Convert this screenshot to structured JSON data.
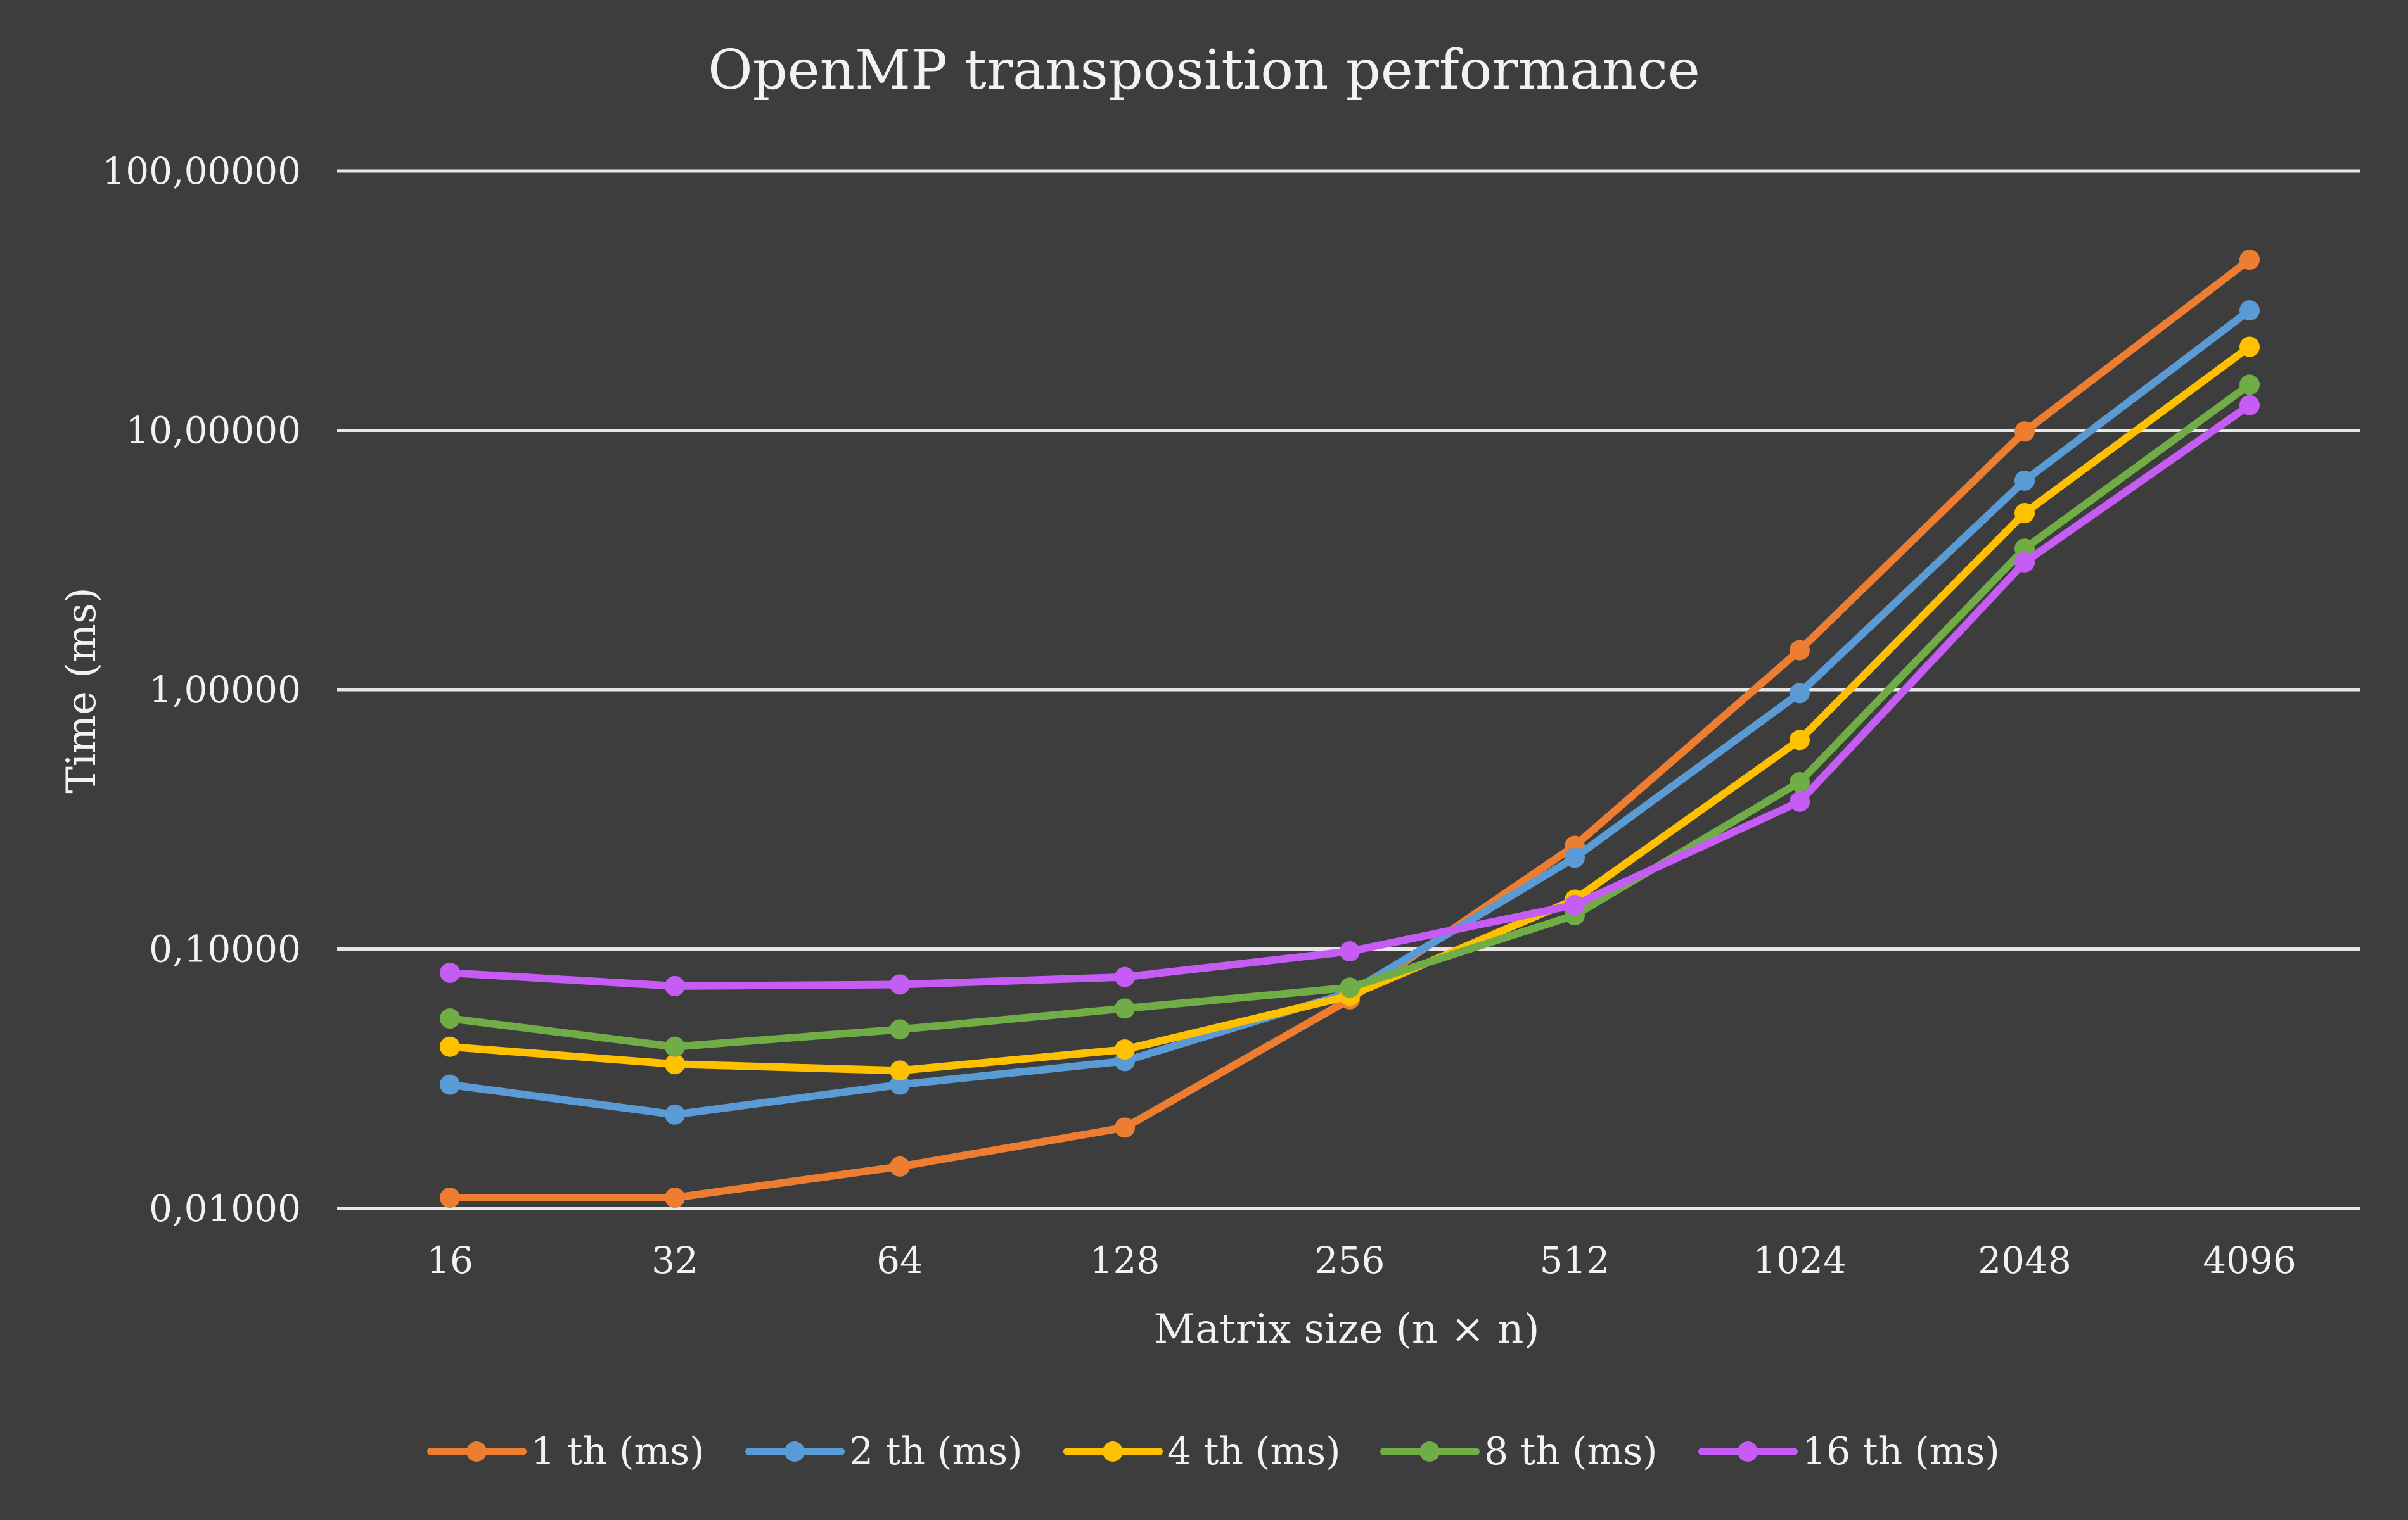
{
  "chart_data": {
    "type": "line",
    "title": "OpenMP transposition performance",
    "xlabel": "Matrix size (n × n)",
    "ylabel": "Time (ms)",
    "y_scale": "log",
    "ylim": [
      0.01,
      100
    ],
    "y_ticks": [
      100,
      10,
      1,
      0.1,
      0.01
    ],
    "y_tick_labels": [
      "100,00000",
      "10,00000",
      "1,00000",
      "0,10000",
      "0,01000"
    ],
    "grid": true,
    "legend_position": "bottom",
    "categories": [
      "16",
      "32",
      "64",
      "128",
      "256",
      "512",
      "1024",
      "2048",
      "4096"
    ],
    "series": [
      {
        "name": "1 th (ms)",
        "color": "#ed7d31",
        "values": [
          0.011,
          0.011,
          0.0145,
          0.0205,
          0.064,
          0.25,
          1.42,
          9.9,
          45.5
        ]
      },
      {
        "name": "2 th (ms)",
        "color": "#5b9bd5",
        "values": [
          0.03,
          0.023,
          0.03,
          0.037,
          0.068,
          0.225,
          0.97,
          6.4,
          29.0
        ]
      },
      {
        "name": "4 th (ms)",
        "color": "#ffc000",
        "values": [
          0.042,
          0.036,
          0.034,
          0.041,
          0.066,
          0.155,
          0.64,
          4.8,
          21.0
        ]
      },
      {
        "name": "8 th (ms)",
        "color": "#70ad47",
        "values": [
          0.054,
          0.042,
          0.049,
          0.059,
          0.071,
          0.135,
          0.44,
          3.5,
          15.0
        ]
      },
      {
        "name": "16 th (ms)",
        "color": "#c55cf3",
        "values": [
          0.081,
          0.072,
          0.073,
          0.078,
          0.098,
          0.148,
          0.37,
          3.1,
          12.5
        ]
      }
    ]
  }
}
